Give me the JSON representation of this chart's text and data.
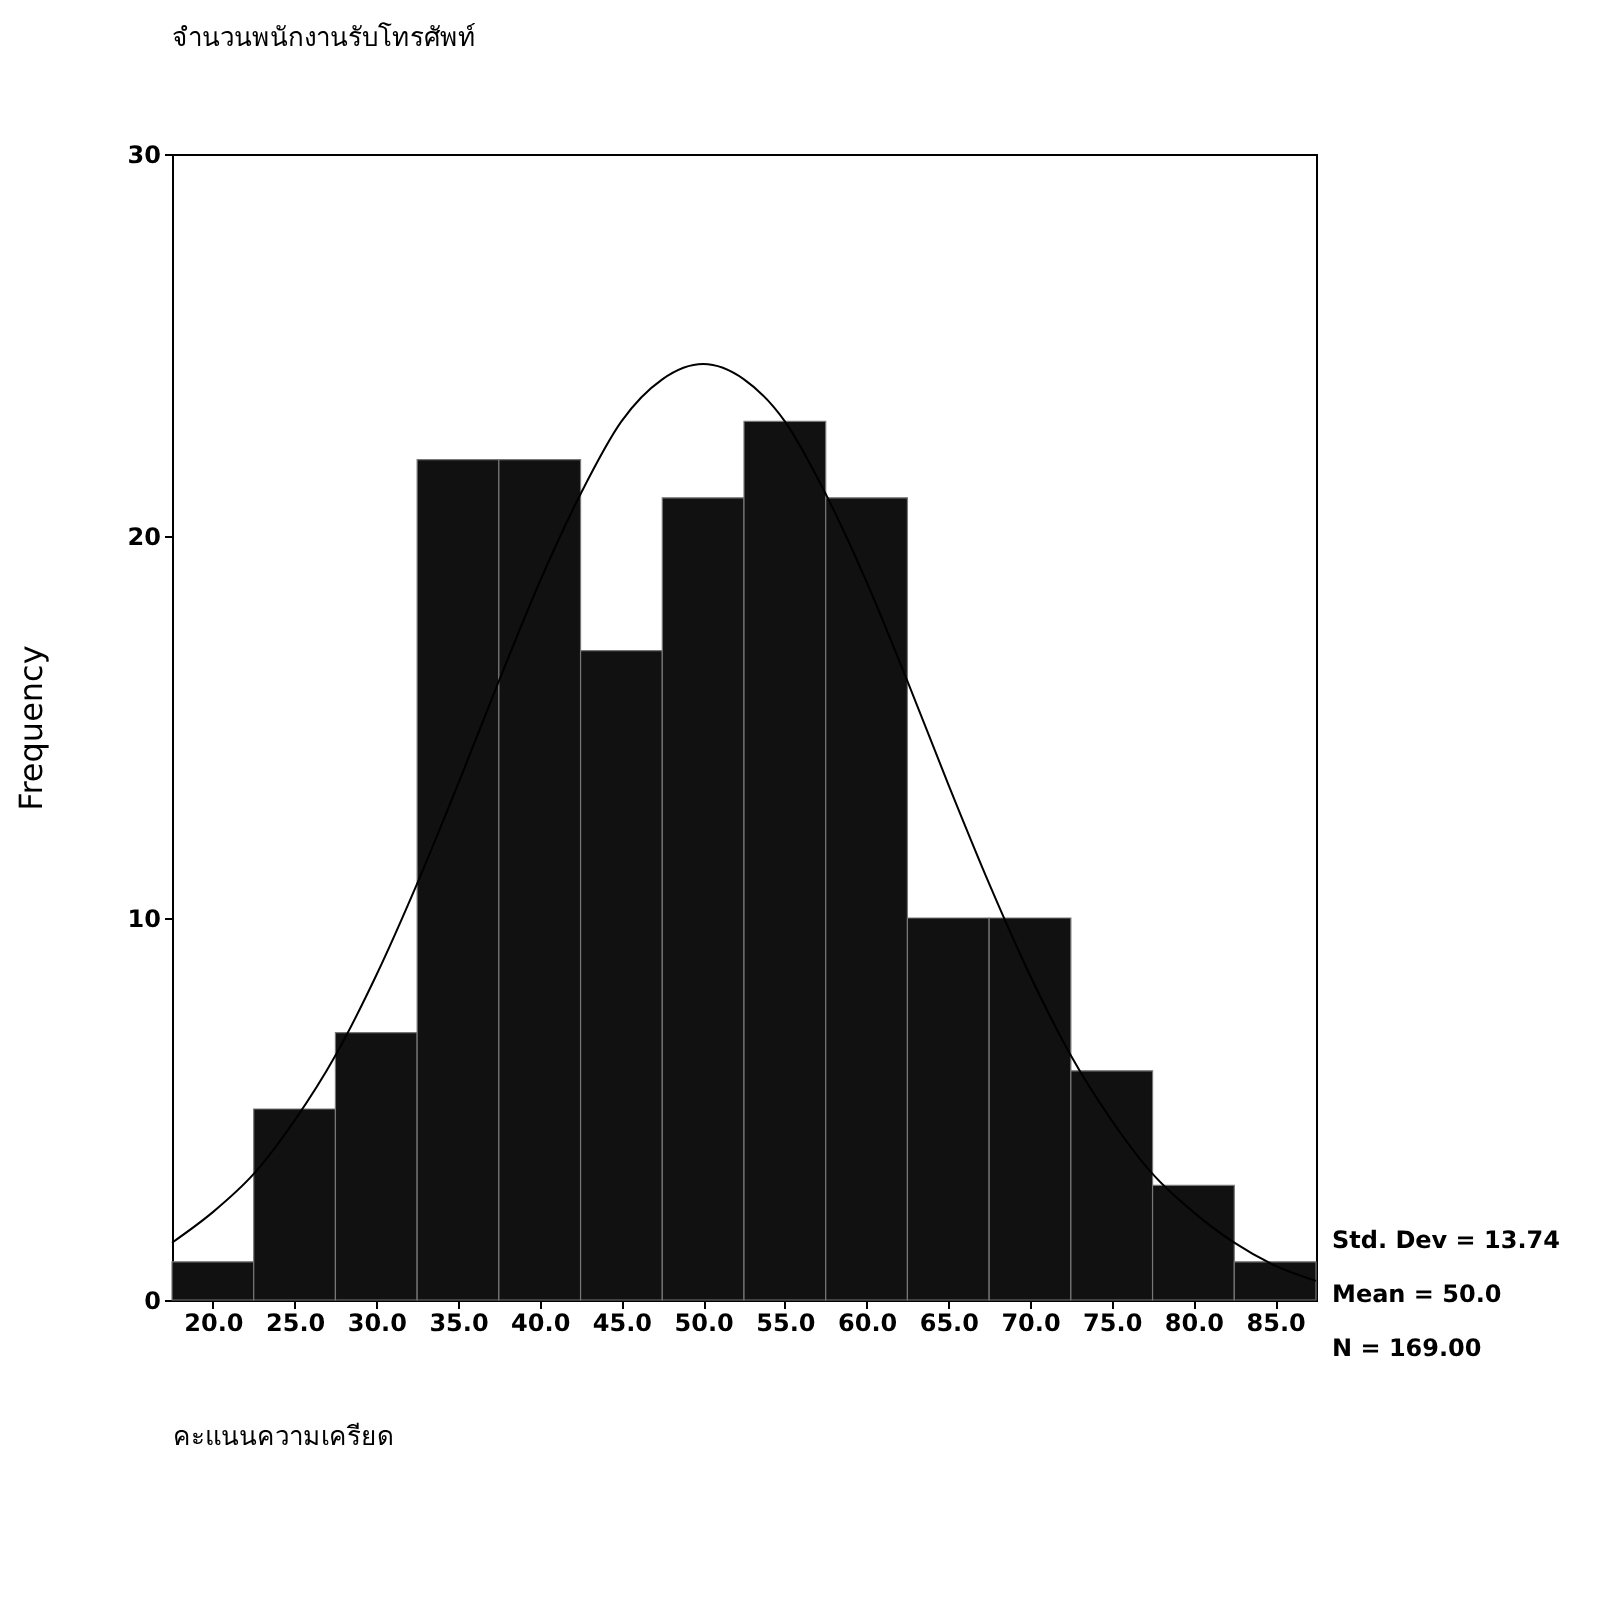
{
  "chart_data": {
    "type": "histogram",
    "title": "จำนวนพนักงานรับโทรศัพท์",
    "xlabel": "คะแนนความเครียด",
    "ylabel": "Frequency",
    "series": [
      {
        "type": "histogram",
        "color": "#111111",
        "bins": [
          17.5,
          22.5,
          27.5,
          32.5,
          37.5,
          42.5,
          47.5,
          52.5,
          57.5,
          62.5,
          67.5,
          72.5,
          77.5,
          82.5,
          87.5
        ],
        "values": [
          1,
          5,
          7,
          22,
          22,
          17,
          21,
          23,
          21,
          10,
          10,
          6,
          3,
          1
        ]
      },
      {
        "type": "line",
        "color": "#000000",
        "x": [
          17.5,
          20,
          22.5,
          25,
          27.5,
          30,
          32.5,
          35,
          37.5,
          40,
          42.5,
          45,
          47.5,
          50,
          52.5,
          55,
          57.5,
          60,
          62.5,
          65,
          67.5,
          70,
          72.5,
          75,
          77.5,
          80,
          82.5,
          85,
          87.5
        ],
        "values": [
          1.5,
          2.3,
          3.3,
          4.7,
          6.4,
          8.5,
          10.9,
          13.5,
          16.2,
          18.8,
          21.1,
          23.0,
          24.1,
          24.5,
          24.1,
          23.0,
          21.1,
          18.8,
          16.2,
          13.5,
          10.9,
          8.5,
          6.4,
          4.7,
          3.3,
          2.3,
          1.5,
          0.9,
          0.5
        ]
      }
    ],
    "xlim": [
      17.5,
      87.5
    ],
    "xticks": [
      {
        "value": 20,
        "label": "20.0"
      },
      {
        "value": 25,
        "label": "25.0"
      },
      {
        "value": 30,
        "label": "30.0"
      },
      {
        "value": 35,
        "label": "35.0"
      },
      {
        "value": 40,
        "label": "40.0"
      },
      {
        "value": 45,
        "label": "45.0"
      },
      {
        "value": 50,
        "label": "50.0"
      },
      {
        "value": 55,
        "label": "55.0"
      },
      {
        "value": 60,
        "label": "60.0"
      },
      {
        "value": 65,
        "label": "65.0"
      },
      {
        "value": 70,
        "label": "70.0"
      },
      {
        "value": 75,
        "label": "75.0"
      },
      {
        "value": 80,
        "label": "80.0"
      },
      {
        "value": 85,
        "label": "85.0"
      }
    ],
    "ylim": [
      0,
      30
    ],
    "yticks": [
      0,
      10,
      20,
      30
    ],
    "annotations": [
      "Std. Dev = 13.74",
      "Mean = 50.0",
      "N = 169.00"
    ]
  }
}
